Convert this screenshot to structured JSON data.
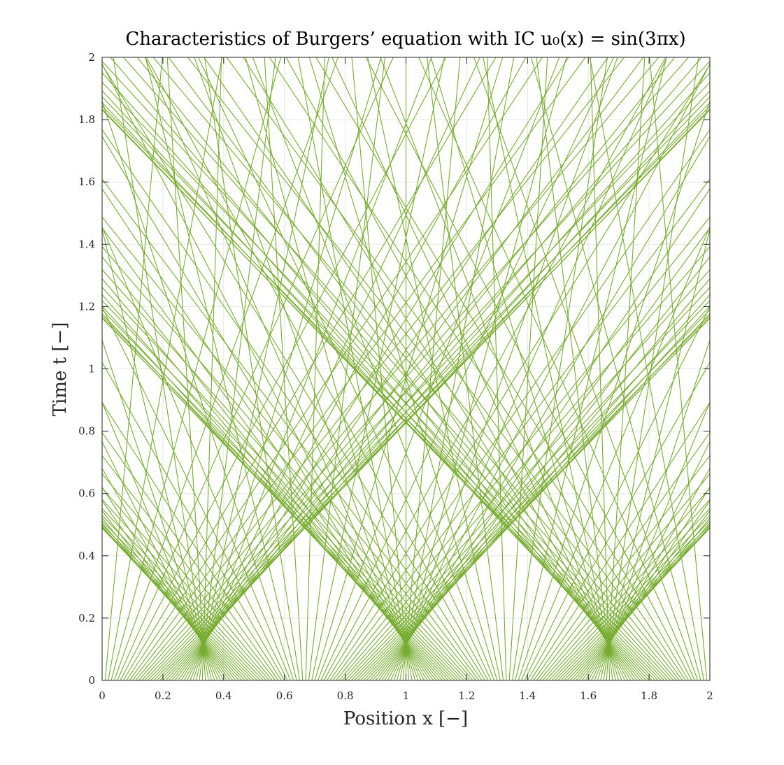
{
  "chart_data": {
    "type": "line",
    "title": "Characteristics of Burgers’ equation with IC u₀(x) = sin(3πx)",
    "xlabel": "Position x [−]",
    "ylabel": "Time t [−]",
    "xlim": [
      0,
      2
    ],
    "ylim": [
      0,
      2
    ],
    "xticks": [
      "0",
      "0.2",
      "0.4",
      "0.6",
      "0.8",
      "1",
      "1.2",
      "1.4",
      "1.6",
      "1.8",
      "2"
    ],
    "yticks": [
      "0",
      "0.2",
      "0.4",
      "0.6",
      "0.8",
      "1",
      "1.2",
      "1.4",
      "1.6",
      "1.8",
      "2"
    ],
    "grid": true,
    "line_color": "#77AC30",
    "characteristics": {
      "x0_start": 0,
      "x0_end": 2,
      "count": 201,
      "speed_function": "sin(3πx0)",
      "line_equation": "x = x0 + sin(3πx0)·t"
    }
  }
}
